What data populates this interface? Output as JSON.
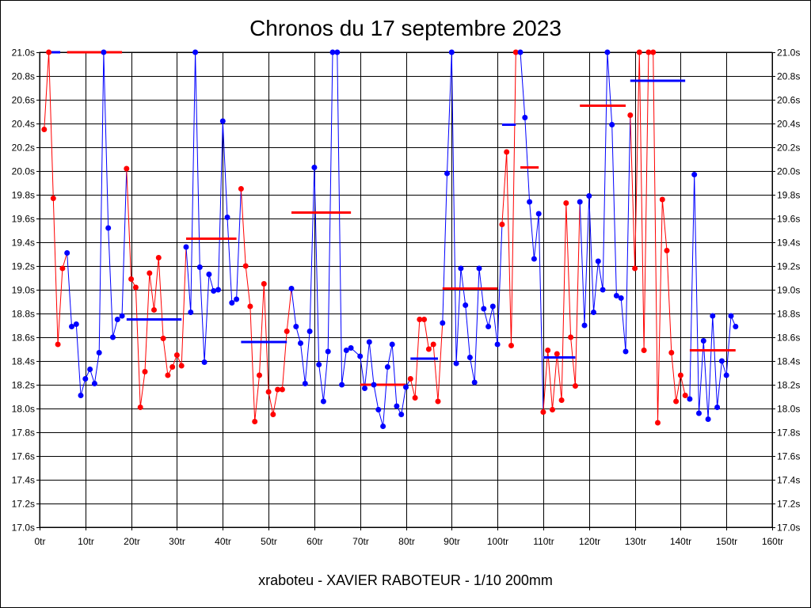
{
  "chart_data": {
    "type": "line",
    "title": "Chronos du 17 septembre 2023",
    "subtitle": "xraboteu - XAVIER RABOTEUR - 1/10 200mm",
    "xlabel": "",
    "ylabel": "",
    "xlim": [
      0,
      160
    ],
    "ylim": [
      17.0,
      21.0
    ],
    "x_ticks": [
      {
        "value": 0,
        "label": "0tr"
      },
      {
        "value": 10,
        "label": "10tr"
      },
      {
        "value": 20,
        "label": "20tr"
      },
      {
        "value": 30,
        "label": "30tr"
      },
      {
        "value": 40,
        "label": "40tr"
      },
      {
        "value": 50,
        "label": "50tr"
      },
      {
        "value": 60,
        "label": "60tr"
      },
      {
        "value": 70,
        "label": "70tr"
      },
      {
        "value": 80,
        "label": "80tr"
      },
      {
        "value": 90,
        "label": "90tr"
      },
      {
        "value": 100,
        "label": "100tr"
      },
      {
        "value": 110,
        "label": "110tr"
      },
      {
        "value": 120,
        "label": "120tr"
      },
      {
        "value": 130,
        "label": "130tr"
      },
      {
        "value": 140,
        "label": "140tr"
      },
      {
        "value": 150,
        "label": "150tr"
      },
      {
        "value": 160,
        "label": "160tr"
      }
    ],
    "y_ticks": [
      {
        "value": 17.0,
        "label": "17.0s"
      },
      {
        "value": 17.2,
        "label": "17.2s"
      },
      {
        "value": 17.4,
        "label": "17.4s"
      },
      {
        "value": 17.6,
        "label": "17.6s"
      },
      {
        "value": 17.8,
        "label": "17.8s"
      },
      {
        "value": 18.0,
        "label": "18.0s"
      },
      {
        "value": 18.2,
        "label": "18.2s"
      },
      {
        "value": 18.4,
        "label": "18.4s"
      },
      {
        "value": 18.6,
        "label": "18.6s"
      },
      {
        "value": 18.8,
        "label": "18.8s"
      },
      {
        "value": 19.0,
        "label": "19.0s"
      },
      {
        "value": 19.2,
        "label": "19.2s"
      },
      {
        "value": 19.4,
        "label": "19.4s"
      },
      {
        "value": 19.6,
        "label": "19.6s"
      },
      {
        "value": 19.8,
        "label": "19.8s"
      },
      {
        "value": 20.0,
        "label": "20.0s"
      },
      {
        "value": 20.2,
        "label": "20.2s"
      },
      {
        "value": 20.4,
        "label": "20.4s"
      },
      {
        "value": 20.6,
        "label": "20.6s"
      },
      {
        "value": 20.8,
        "label": "20.8s"
      },
      {
        "value": 21.0,
        "label": "21.0s"
      }
    ],
    "grid": true,
    "colors": {
      "red": "#ff0000",
      "blue": "#0000ff",
      "grid": "#000000"
    },
    "segments": [
      {
        "color": "red",
        "mean": null,
        "points": [
          [
            1,
            20.35
          ],
          [
            2,
            21.0
          ],
          [
            3,
            19.77
          ],
          [
            4,
            18.54
          ],
          [
            5,
            19.18
          ]
        ]
      },
      {
        "color": "blue",
        "mean": 21.0,
        "points": [
          [
            6,
            19.31
          ],
          [
            7,
            18.69
          ],
          [
            8,
            18.71
          ],
          [
            9,
            18.11
          ],
          [
            10,
            18.25
          ],
          [
            11,
            18.33
          ],
          [
            12,
            18.21
          ],
          [
            13,
            18.47
          ],
          [
            14,
            21.0
          ],
          [
            15,
            19.52
          ],
          [
            16,
            18.6
          ],
          [
            17,
            18.75
          ],
          [
            18,
            18.78
          ]
        ]
      },
      {
        "color": "red",
        "mean": 21.0,
        "points": [
          [
            19,
            20.02
          ],
          [
            20,
            19.09
          ],
          [
            21,
            19.02
          ],
          [
            22,
            18.01
          ],
          [
            23,
            18.31
          ],
          [
            24,
            19.14
          ],
          [
            25,
            18.83
          ],
          [
            26,
            19.27
          ],
          [
            27,
            18.59
          ],
          [
            28,
            18.28
          ],
          [
            29,
            18.35
          ],
          [
            30,
            18.45
          ],
          [
            31,
            18.36
          ]
        ]
      },
      {
        "color": "blue",
        "mean": 18.75,
        "points": [
          [
            32,
            19.36
          ],
          [
            33,
            18.81
          ],
          [
            34,
            21.0
          ],
          [
            35,
            19.19
          ],
          [
            36,
            18.39
          ],
          [
            37,
            19.13
          ],
          [
            38,
            18.99
          ],
          [
            39,
            19.0
          ],
          [
            40,
            20.42
          ],
          [
            41,
            19.61
          ],
          [
            42,
            18.89
          ],
          [
            43,
            18.92
          ]
        ]
      },
      {
        "color": "red",
        "mean": 19.43,
        "points": [
          [
            44,
            19.85
          ],
          [
            45,
            19.2
          ],
          [
            46,
            18.86
          ],
          [
            47,
            17.89
          ],
          [
            48,
            18.28
          ],
          [
            49,
            19.05
          ],
          [
            50,
            18.14
          ],
          [
            51,
            17.95
          ],
          [
            52,
            18.16
          ],
          [
            53,
            18.16
          ],
          [
            54,
            18.65
          ]
        ]
      },
      {
        "color": "blue",
        "mean": 18.56,
        "points": [
          [
            55,
            19.01
          ],
          [
            56,
            18.69
          ],
          [
            57,
            18.55
          ],
          [
            58,
            18.21
          ],
          [
            59,
            18.65
          ],
          [
            60,
            20.03
          ],
          [
            61,
            18.37
          ],
          [
            62,
            18.06
          ],
          [
            63,
            18.48
          ],
          [
            64,
            21.0
          ],
          [
            65,
            21.0
          ],
          [
            66,
            18.2
          ],
          [
            67,
            18.49
          ],
          [
            68,
            18.51
          ]
        ]
      },
      {
        "color": "red",
        "mean": 19.65,
        "points": []
      },
      {
        "color": "blue",
        "mean": null,
        "points": [
          [
            70,
            18.44
          ],
          [
            71,
            18.17
          ],
          [
            72,
            18.56
          ],
          [
            73,
            18.2
          ],
          [
            74,
            17.99
          ],
          [
            75,
            17.85
          ],
          [
            76,
            18.35
          ],
          [
            77,
            18.54
          ],
          [
            78,
            18.02
          ],
          [
            79,
            17.95
          ],
          [
            80,
            18.18
          ]
        ]
      },
      {
        "color": "red",
        "mean": 18.2,
        "points": [
          [
            81,
            18.25
          ],
          [
            82,
            18.09
          ],
          [
            83,
            18.75
          ],
          [
            84,
            18.75
          ],
          [
            85,
            18.5
          ],
          [
            86,
            18.54
          ],
          [
            87,
            18.06
          ]
        ]
      },
      {
        "color": "blue",
        "mean": 18.42,
        "points": [
          [
            88,
            18.72
          ],
          [
            89,
            19.98
          ],
          [
            90,
            21.0
          ],
          [
            91,
            18.38
          ],
          [
            92,
            19.18
          ],
          [
            93,
            18.87
          ],
          [
            94,
            18.43
          ],
          [
            95,
            18.22
          ],
          [
            96,
            19.18
          ],
          [
            97,
            18.84
          ],
          [
            98,
            18.69
          ],
          [
            99,
            18.86
          ],
          [
            100,
            18.54
          ]
        ]
      },
      {
        "color": "red",
        "mean": 19.01,
        "points": [
          [
            101,
            19.55
          ],
          [
            102,
            20.16
          ],
          [
            103,
            18.53
          ],
          [
            104,
            21.0
          ]
        ]
      },
      {
        "color": "blue",
        "mean": 20.39,
        "points": [
          [
            105,
            21.0
          ],
          [
            106,
            20.45
          ],
          [
            107,
            19.74
          ],
          [
            108,
            19.26
          ],
          [
            109,
            19.64
          ]
        ]
      },
      {
        "color": "red",
        "mean": 20.03,
        "points": [
          [
            110,
            17.97
          ],
          [
            111,
            18.49
          ],
          [
            112,
            17.99
          ],
          [
            113,
            18.46
          ],
          [
            114,
            18.07
          ],
          [
            115,
            19.73
          ],
          [
            116,
            18.6
          ],
          [
            117,
            18.19
          ]
        ]
      },
      {
        "color": "blue",
        "mean": 18.43,
        "points": [
          [
            118,
            19.74
          ],
          [
            119,
            18.7
          ],
          [
            120,
            19.79
          ],
          [
            121,
            18.81
          ],
          [
            122,
            19.24
          ],
          [
            123,
            19.0
          ],
          [
            124,
            21.0
          ],
          [
            125,
            20.39
          ],
          [
            126,
            18.95
          ],
          [
            127,
            18.93
          ],
          [
            128,
            18.48
          ]
        ]
      },
      {
        "color": "red",
        "mean": 20.55,
        "points": [
          [
            129,
            20.47
          ],
          [
            130,
            19.18
          ],
          [
            131,
            21.0
          ],
          [
            132,
            18.49
          ],
          [
            133,
            21.0
          ],
          [
            134,
            21.0
          ],
          [
            135,
            17.88
          ],
          [
            136,
            19.76
          ],
          [
            137,
            19.33
          ],
          [
            138,
            18.47
          ],
          [
            139,
            18.06
          ],
          [
            140,
            18.28
          ],
          [
            141,
            18.11
          ]
        ]
      },
      {
        "color": "blue",
        "mean": 20.76,
        "points": [
          [
            142,
            18.08
          ],
          [
            143,
            19.97
          ],
          [
            144,
            17.96
          ],
          [
            145,
            18.57
          ],
          [
            146,
            17.91
          ],
          [
            147,
            18.78
          ],
          [
            148,
            18.01
          ],
          [
            149,
            18.4
          ],
          [
            150,
            18.28
          ],
          [
            151,
            18.78
          ],
          [
            152,
            18.69
          ]
        ]
      },
      {
        "color": "red",
        "mean": 18.49,
        "points": []
      }
    ],
    "mean_bars": [
      {
        "color": "blue",
        "x": [
          1.5,
          4.5
        ],
        "y": 21.0
      },
      {
        "color": "red",
        "x": [
          6,
          18
        ],
        "y": 21.0
      },
      {
        "color": "blue",
        "x": [
          19,
          31
        ],
        "y": 18.75
      },
      {
        "color": "red",
        "x": [
          32,
          43
        ],
        "y": 19.43
      },
      {
        "color": "blue",
        "x": [
          44,
          54
        ],
        "y": 18.56
      },
      {
        "color": "red",
        "x": [
          55,
          68
        ],
        "y": 19.65
      },
      {
        "color": "red",
        "x": [
          70,
          80
        ],
        "y": 18.2
      },
      {
        "color": "blue",
        "x": [
          81,
          87
        ],
        "y": 18.42
      },
      {
        "color": "red",
        "x": [
          88,
          100
        ],
        "y": 19.01
      },
      {
        "color": "blue",
        "x": [
          101,
          104
        ],
        "y": 20.39
      },
      {
        "color": "red",
        "x": [
          105,
          109
        ],
        "y": 20.03
      },
      {
        "color": "blue",
        "x": [
          110,
          117
        ],
        "y": 18.43
      },
      {
        "color": "red",
        "x": [
          118,
          128
        ],
        "y": 20.55
      },
      {
        "color": "blue",
        "x": [
          129,
          141
        ],
        "y": 20.76
      },
      {
        "color": "red",
        "x": [
          142,
          152
        ],
        "y": 18.49
      }
    ]
  }
}
